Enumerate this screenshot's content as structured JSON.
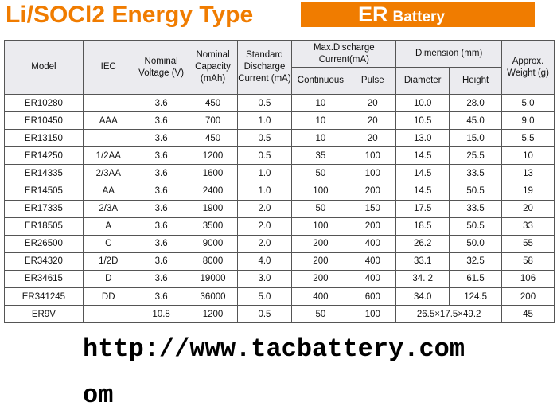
{
  "header": {
    "title": "Li/SOCl2 Energy Type",
    "badge_code": "ER",
    "badge_word": "Battery"
  },
  "table": {
    "head": {
      "model": "Model",
      "iec": "IEC",
      "voltage": "Nominal Voltage (V)",
      "capacity": "Nominal Capacity (mAh)",
      "standard": "Standard Discharge Current (mA)",
      "max": "Max.Discharge Current(mA)",
      "continuous": "Continuous",
      "pulse": "Pulse",
      "dimension": "Dimension (mm)",
      "diameter": "Diameter",
      "height": "Height",
      "weight": "Approx. Weight (g)"
    },
    "rows": [
      [
        "ER10280",
        "",
        "3.6",
        "450",
        "0.5",
        "10",
        "20",
        "10.0",
        "28.0",
        "5.0"
      ],
      [
        "ER10450",
        "AAA",
        "3.6",
        "700",
        "1.0",
        "10",
        "20",
        "10.5",
        "45.0",
        "9.0"
      ],
      [
        "ER13150",
        "",
        "3.6",
        "450",
        "0.5",
        "10",
        "20",
        "13.0",
        "15.0",
        "5.5"
      ],
      [
        "ER14250",
        "1/2AA",
        "3.6",
        "1200",
        "0.5",
        "35",
        "100",
        "14.5",
        "25.5",
        "10"
      ],
      [
        "ER14335",
        "2/3AA",
        "3.6",
        "1600",
        "1.0",
        "50",
        "100",
        "14.5",
        "33.5",
        "13"
      ],
      [
        "ER14505",
        "AA",
        "3.6",
        "2400",
        "1.0",
        "100",
        "200",
        "14.5",
        "50.5",
        "19"
      ],
      [
        "ER17335",
        "2/3A",
        "3.6",
        "1900",
        "2.0",
        "50",
        "150",
        "17.5",
        "33.5",
        "20"
      ],
      [
        "ER18505",
        "A",
        "3.6",
        "3500",
        "2.0",
        "100",
        "200",
        "18.5",
        "50.5",
        "33"
      ],
      [
        "ER26500",
        "C",
        "3.6",
        "9000",
        "2.0",
        "200",
        "400",
        "26.2",
        "50.0",
        "55"
      ],
      [
        "ER34320",
        "1/2D",
        "3.6",
        "8000",
        "4.0",
        "200",
        "400",
        "33.1",
        "32.5",
        "58"
      ],
      [
        "ER34615",
        "D",
        "3.6",
        "19000",
        "3.0",
        "200",
        "400",
        "34. 2",
        "61.5",
        "106"
      ],
      [
        "ER341245",
        "DD",
        "3.6",
        "36000",
        "5.0",
        "400",
        "600",
        "34.0",
        "124.5",
        "200"
      ],
      [
        "ER9V",
        "",
        "10.8",
        "1200",
        "0.5",
        "50",
        "100",
        "26.5×17.5×49.2",
        "45"
      ]
    ]
  },
  "footer": {
    "url": "http://www.tacbattery.com",
    "fragment": "om"
  }
}
